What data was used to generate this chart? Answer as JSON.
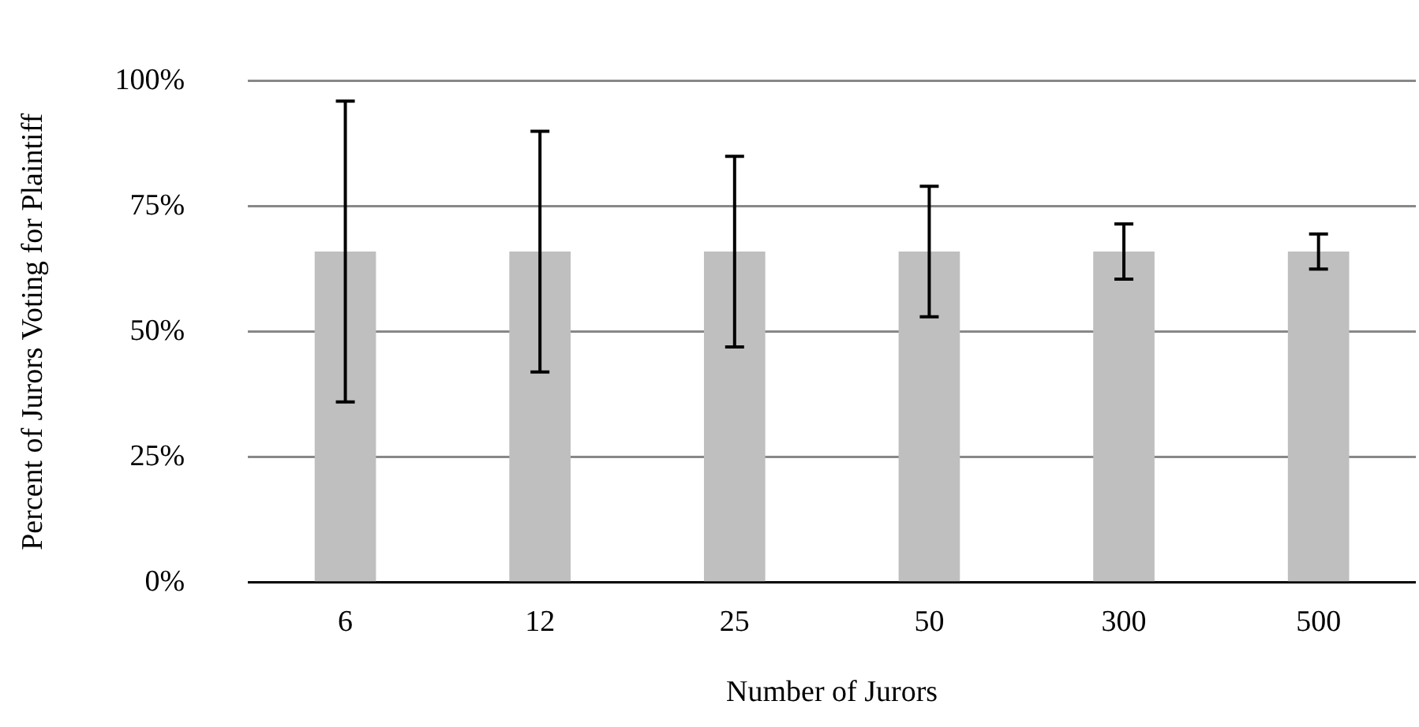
{
  "chart_data": {
    "type": "bar",
    "xlabel": "Number of Jurors",
    "ylabel": "Percent of Jurors Voting for Plaintiff",
    "categories": [
      "6",
      "12",
      "25",
      "50",
      "300",
      "500"
    ],
    "values": [
      66,
      66,
      66,
      66,
      66,
      66
    ],
    "errors": [
      30,
      24,
      19,
      13,
      5.5,
      3.5
    ],
    "color": "#bfbfbf",
    "ylim": [
      0,
      100
    ],
    "yticks": [
      {
        "value": 0,
        "label": "0%"
      },
      {
        "value": 25,
        "label": "25%"
      },
      {
        "value": 50,
        "label": "50%"
      },
      {
        "value": 75,
        "label": "75%"
      },
      {
        "value": 100,
        "label": "100%"
      }
    ],
    "grid": "y",
    "legend": false
  }
}
